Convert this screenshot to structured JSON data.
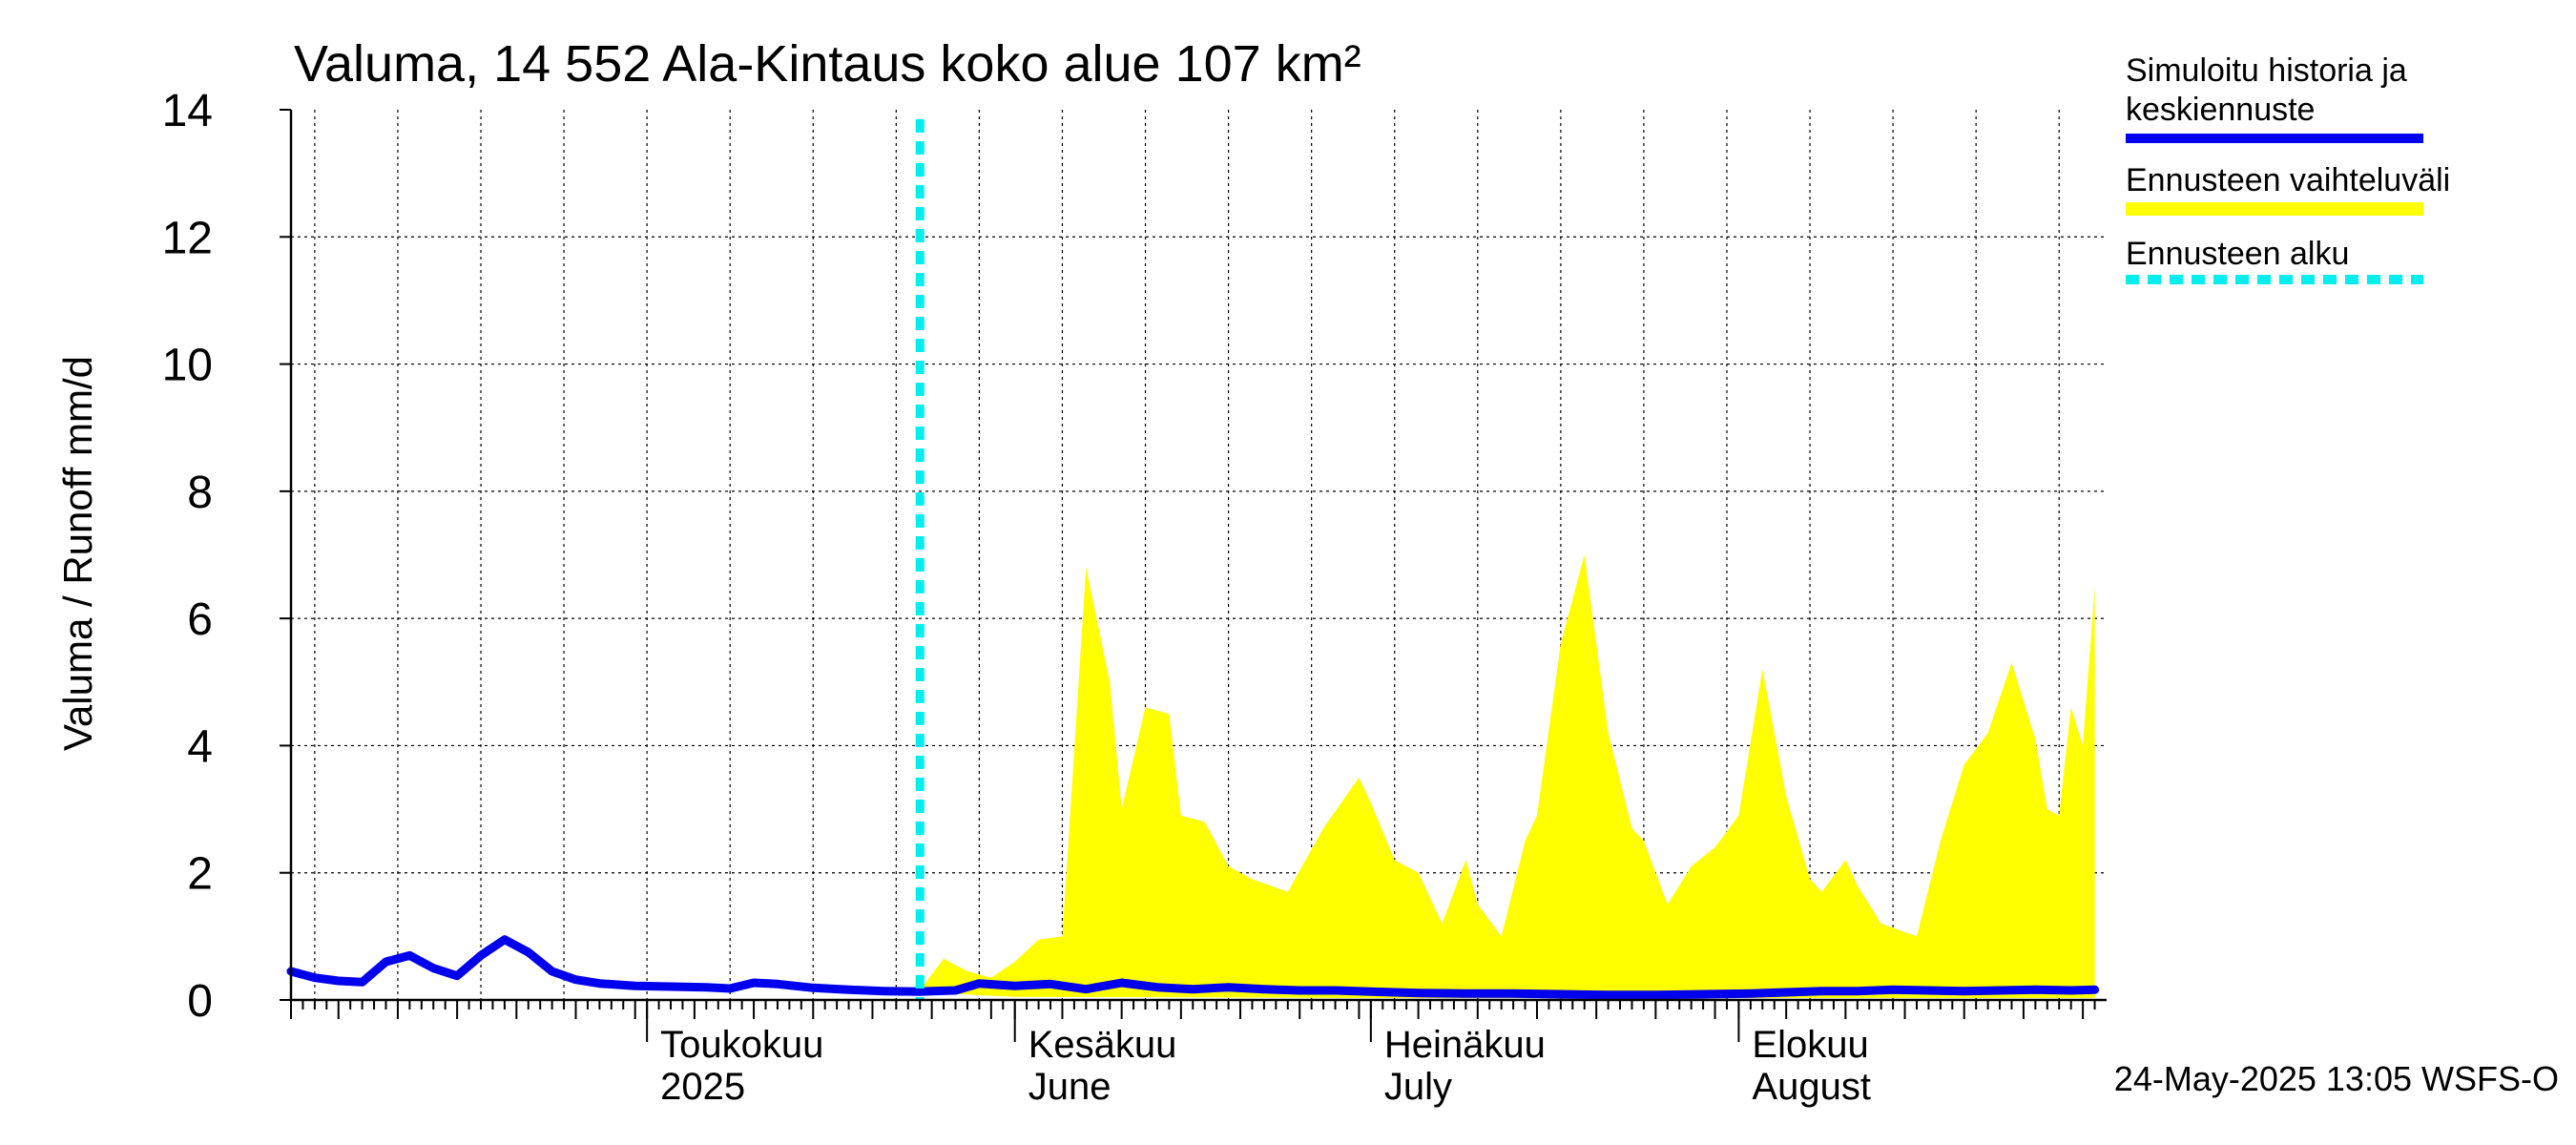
{
  "chart_data": {
    "type": "area",
    "title": "Valuma, 14 552 Ala-Kintaus koko alue 107 km²",
    "ylabel": "Valuma / Runoff    mm/d",
    "ylim": [
      0,
      14
    ],
    "yticks": [
      0,
      2,
      4,
      6,
      8,
      10,
      12,
      14
    ],
    "x_range": [
      "2025-04-01",
      "2025-08-31"
    ],
    "grid": true,
    "legend_position": "right",
    "month_labels": [
      {
        "date": "2025-05-01",
        "line1": "Toukokuu",
        "line2": "2025"
      },
      {
        "date": "2025-06-01",
        "line1": "Kesäkuu",
        "line2": "June"
      },
      {
        "date": "2025-07-01",
        "line1": "Heinäkuu",
        "line2": "July"
      },
      {
        "date": "2025-08-01",
        "line1": "Elokuu",
        "line2": "August"
      }
    ],
    "forecast_start": "2025-05-24",
    "legend": [
      {
        "label": "Simuloitu historia ja keskiennuste",
        "line1": "Simuloitu historia ja",
        "line2": "keskiennuste",
        "color": "#0000ee",
        "style": "solid"
      },
      {
        "label": "Ennusteen vaihteluväli",
        "color": "#ffff00",
        "style": "band"
      },
      {
        "label": "Ennusteen alku",
        "color": "#00eeee",
        "style": "dashed"
      }
    ],
    "series": [
      {
        "name": "Simuloitu historia ja keskiennuste",
        "color": "#0000ee",
        "points": [
          [
            "2025-04-01",
            0.45
          ],
          [
            "2025-04-03",
            0.35
          ],
          [
            "2025-04-05",
            0.3
          ],
          [
            "2025-04-07",
            0.28
          ],
          [
            "2025-04-09",
            0.6
          ],
          [
            "2025-04-11",
            0.7
          ],
          [
            "2025-04-13",
            0.5
          ],
          [
            "2025-04-15",
            0.38
          ],
          [
            "2025-04-17",
            0.7
          ],
          [
            "2025-04-19",
            0.95
          ],
          [
            "2025-04-21",
            0.75
          ],
          [
            "2025-04-23",
            0.45
          ],
          [
            "2025-04-25",
            0.32
          ],
          [
            "2025-04-27",
            0.26
          ],
          [
            "2025-04-30",
            0.22
          ],
          [
            "2025-05-03",
            0.21
          ],
          [
            "2025-05-06",
            0.2
          ],
          [
            "2025-05-08",
            0.18
          ],
          [
            "2025-05-10",
            0.27
          ],
          [
            "2025-05-12",
            0.25
          ],
          [
            "2025-05-15",
            0.19
          ],
          [
            "2025-05-18",
            0.16
          ],
          [
            "2025-05-21",
            0.14
          ],
          [
            "2025-05-24",
            0.13
          ],
          [
            "2025-05-25",
            0.14
          ],
          [
            "2025-05-27",
            0.15
          ],
          [
            "2025-05-29",
            0.26
          ],
          [
            "2025-06-01",
            0.22
          ],
          [
            "2025-06-04",
            0.25
          ],
          [
            "2025-06-07",
            0.17
          ],
          [
            "2025-06-10",
            0.27
          ],
          [
            "2025-06-13",
            0.2
          ],
          [
            "2025-06-16",
            0.17
          ],
          [
            "2025-06-19",
            0.2
          ],
          [
            "2025-06-22",
            0.17
          ],
          [
            "2025-06-25",
            0.15
          ],
          [
            "2025-06-28",
            0.15
          ],
          [
            "2025-07-01",
            0.13
          ],
          [
            "2025-07-05",
            0.11
          ],
          [
            "2025-07-09",
            0.1
          ],
          [
            "2025-07-13",
            0.1
          ],
          [
            "2025-07-17",
            0.09
          ],
          [
            "2025-07-21",
            0.08
          ],
          [
            "2025-07-25",
            0.08
          ],
          [
            "2025-07-29",
            0.09
          ],
          [
            "2025-08-02",
            0.1
          ],
          [
            "2025-08-05",
            0.12
          ],
          [
            "2025-08-08",
            0.14
          ],
          [
            "2025-08-11",
            0.14
          ],
          [
            "2025-08-14",
            0.16
          ],
          [
            "2025-08-17",
            0.15
          ],
          [
            "2025-08-20",
            0.14
          ],
          [
            "2025-08-23",
            0.15
          ],
          [
            "2025-08-26",
            0.16
          ],
          [
            "2025-08-29",
            0.15
          ],
          [
            "2025-08-31",
            0.16
          ]
        ]
      }
    ],
    "range_band": {
      "name": "Ennusteen vaihteluväli",
      "color": "#ffff00",
      "upper": [
        [
          "2025-05-24",
          0.15
        ],
        [
          "2025-05-26",
          0.65
        ],
        [
          "2025-05-28",
          0.45
        ],
        [
          "2025-05-30",
          0.35
        ],
        [
          "2025-06-01",
          0.6
        ],
        [
          "2025-06-03",
          0.95
        ],
        [
          "2025-06-05",
          1.0
        ],
        [
          "2025-06-07",
          6.8
        ],
        [
          "2025-06-09",
          5.0
        ],
        [
          "2025-06-10",
          3.0
        ],
        [
          "2025-06-12",
          4.6
        ],
        [
          "2025-06-14",
          4.5
        ],
        [
          "2025-06-15",
          2.9
        ],
        [
          "2025-06-17",
          2.8
        ],
        [
          "2025-06-19",
          2.1
        ],
        [
          "2025-06-21",
          1.9
        ],
        [
          "2025-06-24",
          1.7
        ],
        [
          "2025-06-27",
          2.7
        ],
        [
          "2025-06-30",
          3.5
        ],
        [
          "2025-07-01",
          3.1
        ],
        [
          "2025-07-03",
          2.2
        ],
        [
          "2025-07-05",
          2.0
        ],
        [
          "2025-07-07",
          1.2
        ],
        [
          "2025-07-09",
          2.2
        ],
        [
          "2025-07-10",
          1.5
        ],
        [
          "2025-07-12",
          1.0
        ],
        [
          "2025-07-14",
          2.5
        ],
        [
          "2025-07-15",
          2.9
        ],
        [
          "2025-07-17",
          5.6
        ],
        [
          "2025-07-19",
          7.0
        ],
        [
          "2025-07-21",
          4.2
        ],
        [
          "2025-07-23",
          2.7
        ],
        [
          "2025-07-24",
          2.5
        ],
        [
          "2025-07-26",
          1.5
        ],
        [
          "2025-07-28",
          2.1
        ],
        [
          "2025-07-30",
          2.4
        ],
        [
          "2025-08-01",
          2.9
        ],
        [
          "2025-08-03",
          5.2
        ],
        [
          "2025-08-05",
          3.2
        ],
        [
          "2025-08-07",
          1.9
        ],
        [
          "2025-08-08",
          1.7
        ],
        [
          "2025-08-10",
          2.2
        ],
        [
          "2025-08-11",
          1.8
        ],
        [
          "2025-08-13",
          1.2
        ],
        [
          "2025-08-16",
          1.0
        ],
        [
          "2025-08-18",
          2.5
        ],
        [
          "2025-08-20",
          3.7
        ],
        [
          "2025-08-22",
          4.2
        ],
        [
          "2025-08-24",
          5.3
        ],
        [
          "2025-08-26",
          4.1
        ],
        [
          "2025-08-27",
          3.0
        ],
        [
          "2025-08-28",
          2.9
        ],
        [
          "2025-08-29",
          4.6
        ],
        [
          "2025-08-30",
          4.0
        ],
        [
          "2025-08-31",
          6.5
        ]
      ],
      "lower": [
        [
          "2025-05-24",
          0.12
        ],
        [
          "2025-06-01",
          0.05
        ],
        [
          "2025-06-15",
          0.04
        ],
        [
          "2025-07-01",
          0.03
        ],
        [
          "2025-07-15",
          0.03
        ],
        [
          "2025-08-01",
          0.03
        ],
        [
          "2025-08-15",
          0.03
        ],
        [
          "2025-08-31",
          0.03
        ]
      ]
    }
  },
  "footer": {
    "timestamp": "24-May-2025 13:05 WSFS-O"
  }
}
